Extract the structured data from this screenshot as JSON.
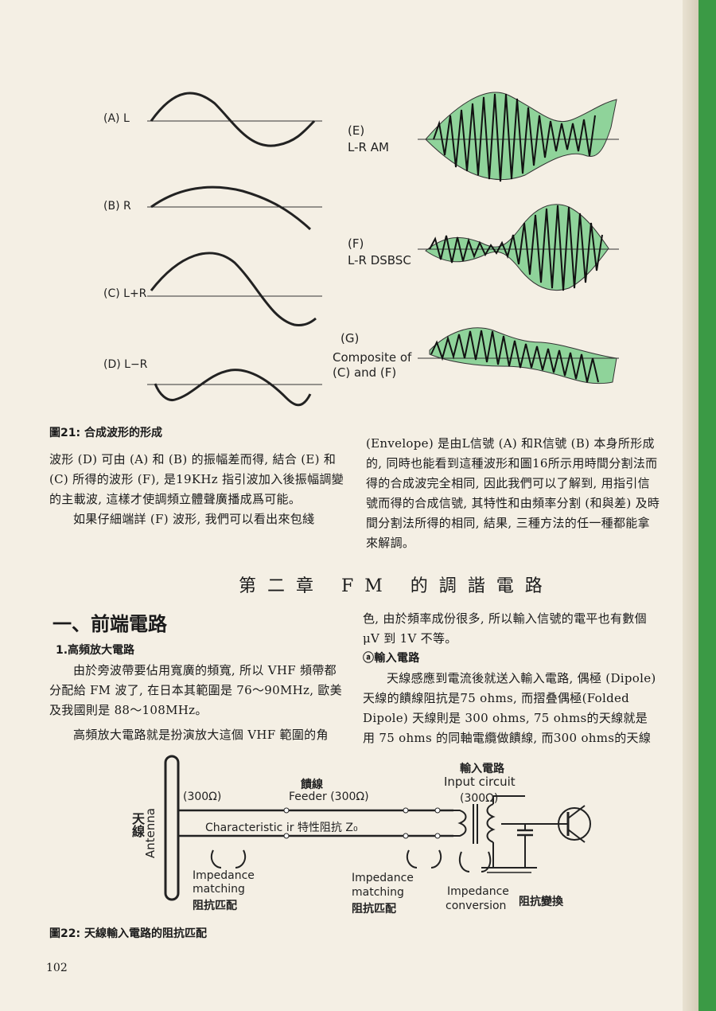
{
  "figure21": {
    "labels": {
      "a": "(A) L",
      "b": "(B) R",
      "c": "(C) L+R",
      "d": "(D) L−R",
      "e_code": "(E)",
      "e_name": "L-R AM",
      "f_code": "(F)",
      "f_name": "L-R DSBSC",
      "g_code": "(G)",
      "g_line1": "Composite of",
      "g_line2": "(C) and (F)"
    },
    "caption": "圖21: 合成波形的形成"
  },
  "left_text": {
    "para1": "波形 (D) 可由 (A) 和 (B) 的振幅差而得, 結合 (E) 和 (C) 所得的波形 (F), 是19KHz 指引波加入後振幅調變的主載波, 這樣才使調頻立體聲廣播成爲可能。",
    "para2": "如果仔細端詳 (F) 波形, 我們可以看出來包綫"
  },
  "right_text": {
    "para1": "(Envelope) 是由L信號 (A) 和R信號 (B) 本身所形成的, 同時也能看到這種波形和圖16所示用時間分割法而得的合成波完全相同, 因此我們可以了解到, 用指引信號而得的合成信號, 其特性和由頻率分割 (和與差) 及時間分割法所得的相同, 結果, 三種方法的任一種都能拿來解調。"
  },
  "chapter_title": "第二章 FM 的調諧電路",
  "section_title": "一、前端電路",
  "subsection": "1.高頻放大電路",
  "left_body": {
    "para1": "由於旁波帶要佔用寬廣的頻寬, 所以 VHF 頻帶都分配給 FM 波了, 在日本其範圍是 76〜90MHz, 歐美及我國則是 88〜108MHz。",
    "para2": "高頻放大電路就是扮演放大這個 VHF 範圍的角"
  },
  "right_body": {
    "para1": "色, 由於頻率成份很多, 所以輸入信號的電平也有數個 μV 到 1V 不等。",
    "subhead": "ⓐ輸入電路",
    "para2": "天線感應到電流後就送入輸入電路, 偶極 (Dipole)天線的饋線阻抗是75 ohms, 而摺叠偶極(Folded Dipole) 天線則是 300 ohms, 75 ohms的天線就是用 75 ohms 的同軸電纜做饋線, 而300 ohms的天線"
  },
  "figure22": {
    "antenna_cn": "天線",
    "antenna_en": "Antenna",
    "ohm_300": "(300Ω)",
    "feeder_cn": "饋線",
    "feeder_en": "Feeder (300Ω)",
    "input_cn": "輸入電路",
    "input_en": "Input circuit",
    "input_ohm": "(300Ω)",
    "characteristic": "Characteristic ir 特性阻抗 Z₀",
    "imp_match1_en1": "Impedance",
    "imp_match1_en2": "matching",
    "imp_match1_cn": "阻抗匹配",
    "imp_match2_en1": "Impedance",
    "imp_match2_en2": "matching",
    "imp_match2_cn": "阻抗匹配",
    "imp_conv_en1": "Impedance",
    "imp_conv_en2": "conversion",
    "imp_conv_cn": "阻抗變換",
    "caption": "圖22: 天線輸入電路的阻抗匹配"
  },
  "page_number": "102"
}
